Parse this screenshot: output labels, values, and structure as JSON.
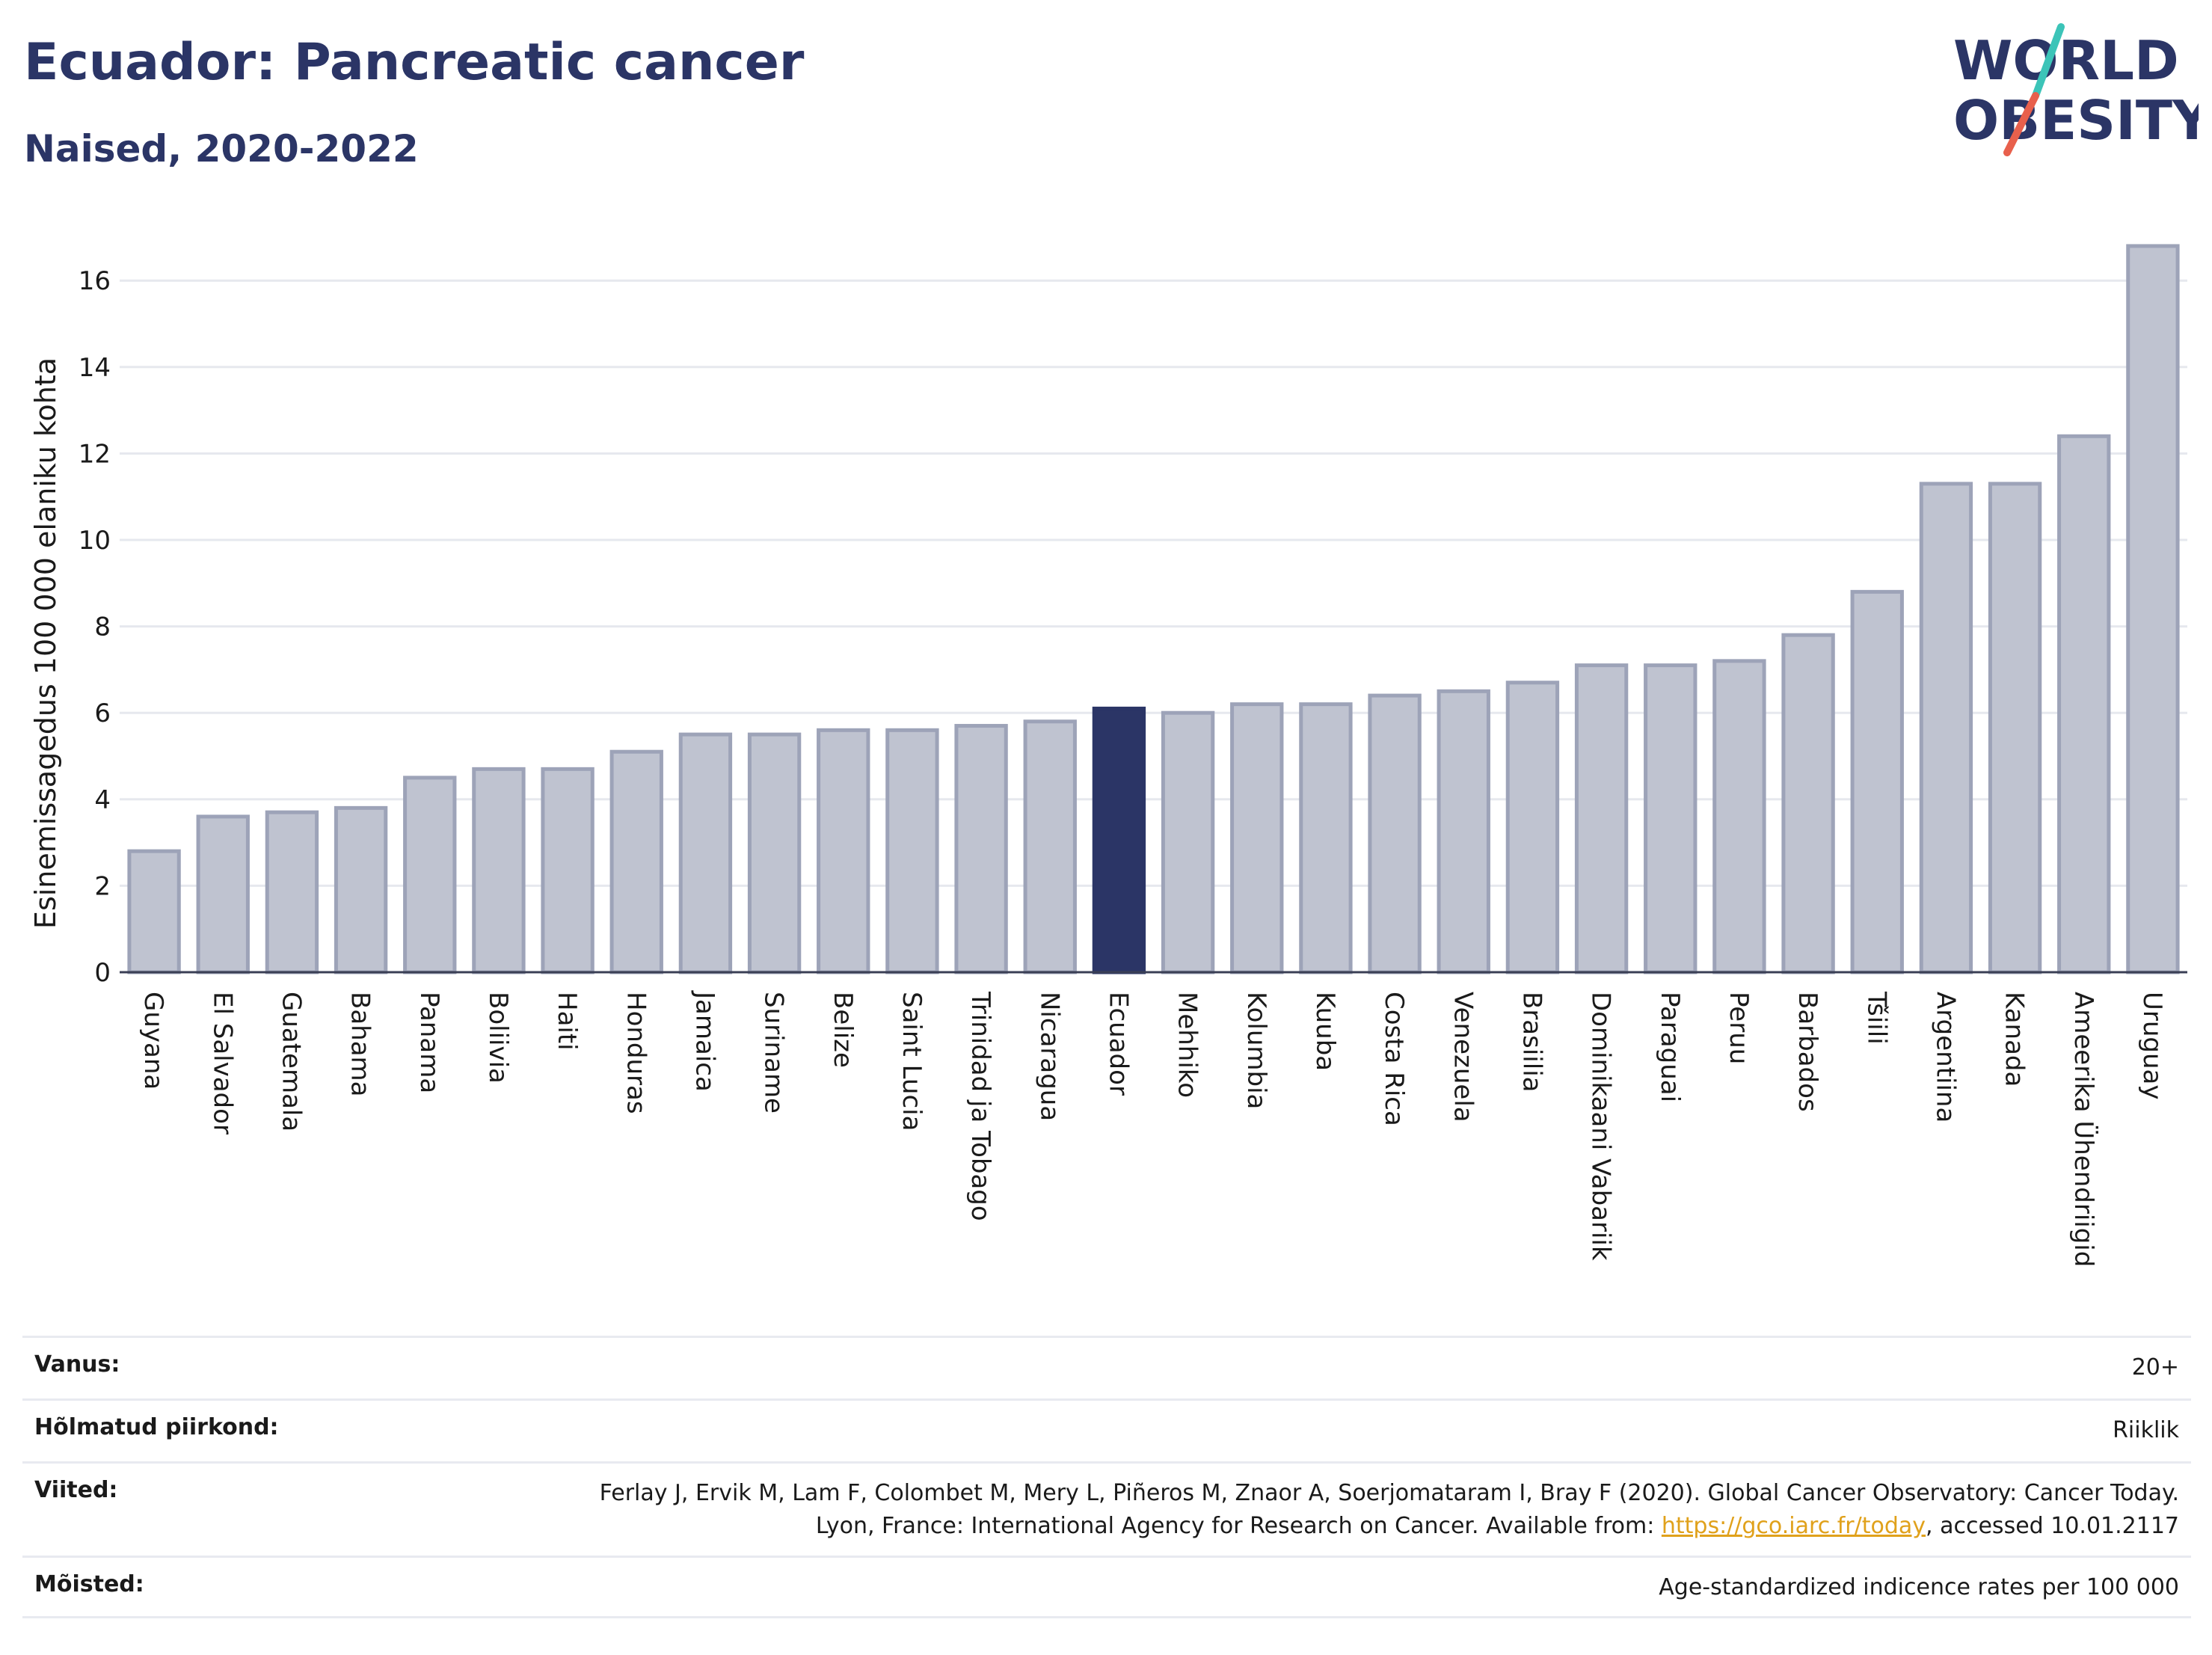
{
  "header": {
    "title": "Ecuador: Pancreatic cancer",
    "subtitle": "Naised, 2020-2022"
  },
  "logo": {
    "line1": "WORLD",
    "line2": "OBESITY",
    "slash_colors": [
      "#3cc4b8",
      "#e8604c"
    ],
    "text_color": "#2b3566"
  },
  "chart_data": {
    "type": "bar",
    "title": "Ecuador: Pancreatic cancer",
    "subtitle": "Naised, 2020-2022",
    "xlabel": "",
    "ylabel": "Esinemissagedus 100 000 elaniku kohta",
    "ylim": [
      0,
      17
    ],
    "yticks": [
      0,
      2,
      4,
      6,
      8,
      10,
      12,
      14,
      16
    ],
    "grid": true,
    "highlight": "Ecuador",
    "colors": {
      "bar": "#bfc3d0",
      "bar_border": "#9da3b8",
      "highlight": "#2b3566",
      "grid": "#e6e8ee"
    },
    "categories": [
      "Guyana",
      "El Salvador",
      "Guatemala",
      "Bahama",
      "Panama",
      "Boliivia",
      "Haiti",
      "Honduras",
      "Jamaica",
      "Suriname",
      "Belize",
      "Saint Lucia",
      "Trinidad ja Tobago",
      "Nicaragua",
      "Ecuador",
      "Mehhiko",
      "Kolumbia",
      "Kuuba",
      "Costa Rica",
      "Venezuela",
      "Brasiilia",
      "Dominikaani Vabariik",
      "Paraguai",
      "Peruu",
      "Barbados",
      "Tšiili",
      "Argentiina",
      "Kanada",
      "Ameerika Ühendriigid",
      "Uruguay"
    ],
    "values": [
      2.8,
      3.6,
      3.7,
      3.8,
      4.5,
      4.7,
      4.7,
      5.1,
      5.5,
      5.5,
      5.6,
      5.6,
      5.7,
      5.8,
      6.1,
      6.0,
      6.2,
      6.2,
      6.4,
      6.5,
      6.7,
      7.1,
      7.1,
      7.2,
      7.8,
      8.8,
      11.3,
      11.3,
      12.4,
      16.8
    ]
  },
  "meta": [
    {
      "key": "Vanus:",
      "value": "20+"
    },
    {
      "key": "Hõlmatud piirkond:",
      "value": "Riiklik"
    },
    {
      "key": "Viited:",
      "value_pre": "Ferlay J, Ervik M, Lam F, Colombet M, Mery L, Piñeros M, Znaor A, Soerjomataram I, Bray F (2020). Global Cancer Observatory: Cancer Today. Lyon, France: International Agency for Research on Cancer. Available from: ",
      "link": "https://gco.iarc.fr/today",
      "value_post": ", accessed 10.01.2117"
    },
    {
      "key": "Mõisted:",
      "value": "Age-standardized indicence rates per 100 000"
    }
  ]
}
